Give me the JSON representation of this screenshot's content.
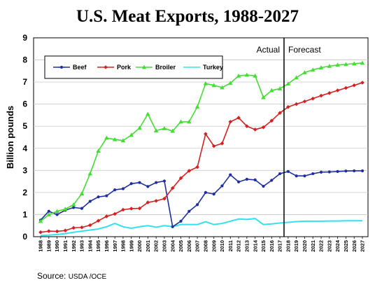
{
  "chart_data": {
    "type": "line",
    "title": "U.S. Meat Exports, 1988-2027",
    "ylabel": "Billion pounds",
    "xlabel": "",
    "ylim": [
      0,
      9
    ],
    "yticks": [
      "0",
      "1",
      "2",
      "3",
      "4",
      "5",
      "6",
      "7",
      "8",
      "9"
    ],
    "x": [
      "1988",
      "1989",
      "1990",
      "1991",
      "1992",
      "1993",
      "1994",
      "1995",
      "1996",
      "1997",
      "1998",
      "1999",
      "2000",
      "2001",
      "2002",
      "2003",
      "2004",
      "2005",
      "2006",
      "2007",
      "2008",
      "2009",
      "2010",
      "2011",
      "2012",
      "2013",
      "2014",
      "2015",
      "2016",
      "2017",
      "2018",
      "2019",
      "2020",
      "2021",
      "2022",
      "2023",
      "2024",
      "2025",
      "2026",
      "2027"
    ],
    "grid": "horizontal",
    "legend_position": "top-left",
    "series": [
      {
        "name": "Beef",
        "color": "#1f2fa0",
        "marker": "circle",
        "values": [
          0.75,
          1.15,
          1.0,
          1.2,
          1.32,
          1.28,
          1.6,
          1.8,
          1.85,
          2.12,
          2.17,
          2.4,
          2.45,
          2.27,
          2.45,
          2.52,
          0.45,
          0.7,
          1.15,
          1.45,
          2.0,
          1.93,
          2.3,
          2.8,
          2.48,
          2.6,
          2.57,
          2.28,
          2.55,
          2.85,
          2.95,
          2.75,
          2.75,
          2.85,
          2.92,
          2.93,
          2.95,
          2.97,
          2.98,
          2.98
        ]
      },
      {
        "name": "Pork",
        "color": "#d42020",
        "marker": "diamond",
        "values": [
          0.2,
          0.25,
          0.24,
          0.28,
          0.4,
          0.42,
          0.52,
          0.72,
          0.92,
          1.03,
          1.22,
          1.27,
          1.28,
          1.55,
          1.62,
          1.72,
          2.2,
          2.65,
          2.98,
          3.15,
          4.65,
          4.1,
          4.22,
          5.2,
          5.38,
          5.0,
          4.85,
          4.95,
          5.25,
          5.6,
          5.87,
          6.0,
          6.12,
          6.25,
          6.38,
          6.5,
          6.62,
          6.73,
          6.85,
          6.97
        ]
      },
      {
        "name": "Broiler",
        "color": "#44dd33",
        "marker": "triangle",
        "values": [
          0.7,
          1.0,
          1.15,
          1.25,
          1.45,
          1.95,
          2.85,
          3.88,
          4.47,
          4.4,
          4.35,
          4.6,
          4.92,
          5.55,
          4.8,
          4.9,
          4.78,
          5.2,
          5.2,
          5.88,
          6.93,
          6.85,
          6.75,
          6.95,
          7.28,
          7.32,
          7.28,
          6.3,
          6.62,
          6.7,
          6.92,
          7.2,
          7.43,
          7.55,
          7.65,
          7.72,
          7.77,
          7.8,
          7.83,
          7.86
        ]
      },
      {
        "name": "Turkey",
        "color": "#33e0f2",
        "marker": "none",
        "values": [
          0.05,
          0.07,
          0.1,
          0.14,
          0.2,
          0.25,
          0.3,
          0.35,
          0.45,
          0.6,
          0.45,
          0.38,
          0.45,
          0.5,
          0.43,
          0.5,
          0.45,
          0.55,
          0.55,
          0.55,
          0.68,
          0.55,
          0.6,
          0.7,
          0.8,
          0.78,
          0.82,
          0.55,
          0.58,
          0.62,
          0.65,
          0.68,
          0.7,
          0.7,
          0.7,
          0.71,
          0.71,
          0.72,
          0.72,
          0.72
        ]
      }
    ],
    "annotations": {
      "divider_after": "2017",
      "actual_label": "Actual",
      "forecast_label": "Forecast"
    }
  },
  "source": {
    "prefix": "Source: ",
    "name": "USDA /OCE"
  }
}
